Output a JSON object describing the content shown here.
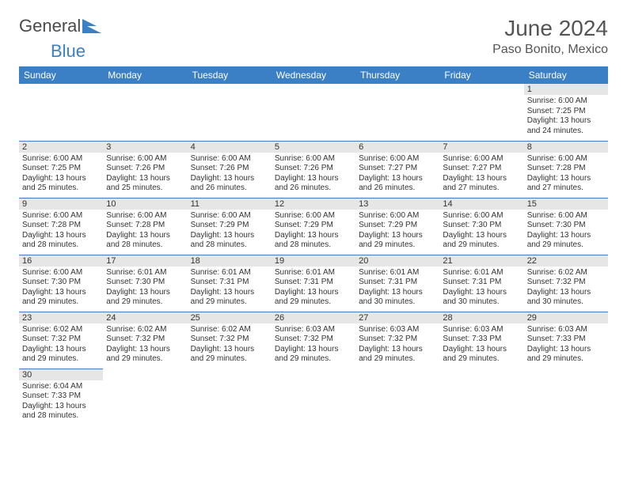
{
  "brand": {
    "part1": "General",
    "part2": "Blue"
  },
  "title": "June 2024",
  "location": "Paso Bonito, Mexico",
  "colors": {
    "header_bg": "#3b7fc4",
    "header_text": "#ffffff",
    "daynum_bg": "#e6e6e6",
    "border": "#3b7fc4",
    "text": "#333333",
    "logo_gray": "#4a4a4a",
    "logo_blue": "#3b7fc4"
  },
  "day_headers": [
    "Sunday",
    "Monday",
    "Tuesday",
    "Wednesday",
    "Thursday",
    "Friday",
    "Saturday"
  ],
  "weeks": [
    [
      null,
      null,
      null,
      null,
      null,
      null,
      {
        "n": "1",
        "sr": "Sunrise: 6:00 AM",
        "ss": "Sunset: 7:25 PM",
        "d1": "Daylight: 13 hours",
        "d2": "and 24 minutes."
      }
    ],
    [
      {
        "n": "2",
        "sr": "Sunrise: 6:00 AM",
        "ss": "Sunset: 7:25 PM",
        "d1": "Daylight: 13 hours",
        "d2": "and 25 minutes."
      },
      {
        "n": "3",
        "sr": "Sunrise: 6:00 AM",
        "ss": "Sunset: 7:26 PM",
        "d1": "Daylight: 13 hours",
        "d2": "and 25 minutes."
      },
      {
        "n": "4",
        "sr": "Sunrise: 6:00 AM",
        "ss": "Sunset: 7:26 PM",
        "d1": "Daylight: 13 hours",
        "d2": "and 26 minutes."
      },
      {
        "n": "5",
        "sr": "Sunrise: 6:00 AM",
        "ss": "Sunset: 7:26 PM",
        "d1": "Daylight: 13 hours",
        "d2": "and 26 minutes."
      },
      {
        "n": "6",
        "sr": "Sunrise: 6:00 AM",
        "ss": "Sunset: 7:27 PM",
        "d1": "Daylight: 13 hours",
        "d2": "and 26 minutes."
      },
      {
        "n": "7",
        "sr": "Sunrise: 6:00 AM",
        "ss": "Sunset: 7:27 PM",
        "d1": "Daylight: 13 hours",
        "d2": "and 27 minutes."
      },
      {
        "n": "8",
        "sr": "Sunrise: 6:00 AM",
        "ss": "Sunset: 7:28 PM",
        "d1": "Daylight: 13 hours",
        "d2": "and 27 minutes."
      }
    ],
    [
      {
        "n": "9",
        "sr": "Sunrise: 6:00 AM",
        "ss": "Sunset: 7:28 PM",
        "d1": "Daylight: 13 hours",
        "d2": "and 28 minutes."
      },
      {
        "n": "10",
        "sr": "Sunrise: 6:00 AM",
        "ss": "Sunset: 7:28 PM",
        "d1": "Daylight: 13 hours",
        "d2": "and 28 minutes."
      },
      {
        "n": "11",
        "sr": "Sunrise: 6:00 AM",
        "ss": "Sunset: 7:29 PM",
        "d1": "Daylight: 13 hours",
        "d2": "and 28 minutes."
      },
      {
        "n": "12",
        "sr": "Sunrise: 6:00 AM",
        "ss": "Sunset: 7:29 PM",
        "d1": "Daylight: 13 hours",
        "d2": "and 28 minutes."
      },
      {
        "n": "13",
        "sr": "Sunrise: 6:00 AM",
        "ss": "Sunset: 7:29 PM",
        "d1": "Daylight: 13 hours",
        "d2": "and 29 minutes."
      },
      {
        "n": "14",
        "sr": "Sunrise: 6:00 AM",
        "ss": "Sunset: 7:30 PM",
        "d1": "Daylight: 13 hours",
        "d2": "and 29 minutes."
      },
      {
        "n": "15",
        "sr": "Sunrise: 6:00 AM",
        "ss": "Sunset: 7:30 PM",
        "d1": "Daylight: 13 hours",
        "d2": "and 29 minutes."
      }
    ],
    [
      {
        "n": "16",
        "sr": "Sunrise: 6:00 AM",
        "ss": "Sunset: 7:30 PM",
        "d1": "Daylight: 13 hours",
        "d2": "and 29 minutes."
      },
      {
        "n": "17",
        "sr": "Sunrise: 6:01 AM",
        "ss": "Sunset: 7:30 PM",
        "d1": "Daylight: 13 hours",
        "d2": "and 29 minutes."
      },
      {
        "n": "18",
        "sr": "Sunrise: 6:01 AM",
        "ss": "Sunset: 7:31 PM",
        "d1": "Daylight: 13 hours",
        "d2": "and 29 minutes."
      },
      {
        "n": "19",
        "sr": "Sunrise: 6:01 AM",
        "ss": "Sunset: 7:31 PM",
        "d1": "Daylight: 13 hours",
        "d2": "and 29 minutes."
      },
      {
        "n": "20",
        "sr": "Sunrise: 6:01 AM",
        "ss": "Sunset: 7:31 PM",
        "d1": "Daylight: 13 hours",
        "d2": "and 30 minutes."
      },
      {
        "n": "21",
        "sr": "Sunrise: 6:01 AM",
        "ss": "Sunset: 7:31 PM",
        "d1": "Daylight: 13 hours",
        "d2": "and 30 minutes."
      },
      {
        "n": "22",
        "sr": "Sunrise: 6:02 AM",
        "ss": "Sunset: 7:32 PM",
        "d1": "Daylight: 13 hours",
        "d2": "and 30 minutes."
      }
    ],
    [
      {
        "n": "23",
        "sr": "Sunrise: 6:02 AM",
        "ss": "Sunset: 7:32 PM",
        "d1": "Daylight: 13 hours",
        "d2": "and 29 minutes."
      },
      {
        "n": "24",
        "sr": "Sunrise: 6:02 AM",
        "ss": "Sunset: 7:32 PM",
        "d1": "Daylight: 13 hours",
        "d2": "and 29 minutes."
      },
      {
        "n": "25",
        "sr": "Sunrise: 6:02 AM",
        "ss": "Sunset: 7:32 PM",
        "d1": "Daylight: 13 hours",
        "d2": "and 29 minutes."
      },
      {
        "n": "26",
        "sr": "Sunrise: 6:03 AM",
        "ss": "Sunset: 7:32 PM",
        "d1": "Daylight: 13 hours",
        "d2": "and 29 minutes."
      },
      {
        "n": "27",
        "sr": "Sunrise: 6:03 AM",
        "ss": "Sunset: 7:32 PM",
        "d1": "Daylight: 13 hours",
        "d2": "and 29 minutes."
      },
      {
        "n": "28",
        "sr": "Sunrise: 6:03 AM",
        "ss": "Sunset: 7:33 PM",
        "d1": "Daylight: 13 hours",
        "d2": "and 29 minutes."
      },
      {
        "n": "29",
        "sr": "Sunrise: 6:03 AM",
        "ss": "Sunset: 7:33 PM",
        "d1": "Daylight: 13 hours",
        "d2": "and 29 minutes."
      }
    ],
    [
      {
        "n": "30",
        "sr": "Sunrise: 6:04 AM",
        "ss": "Sunset: 7:33 PM",
        "d1": "Daylight: 13 hours",
        "d2": "and 28 minutes."
      },
      null,
      null,
      null,
      null,
      null,
      null
    ]
  ]
}
